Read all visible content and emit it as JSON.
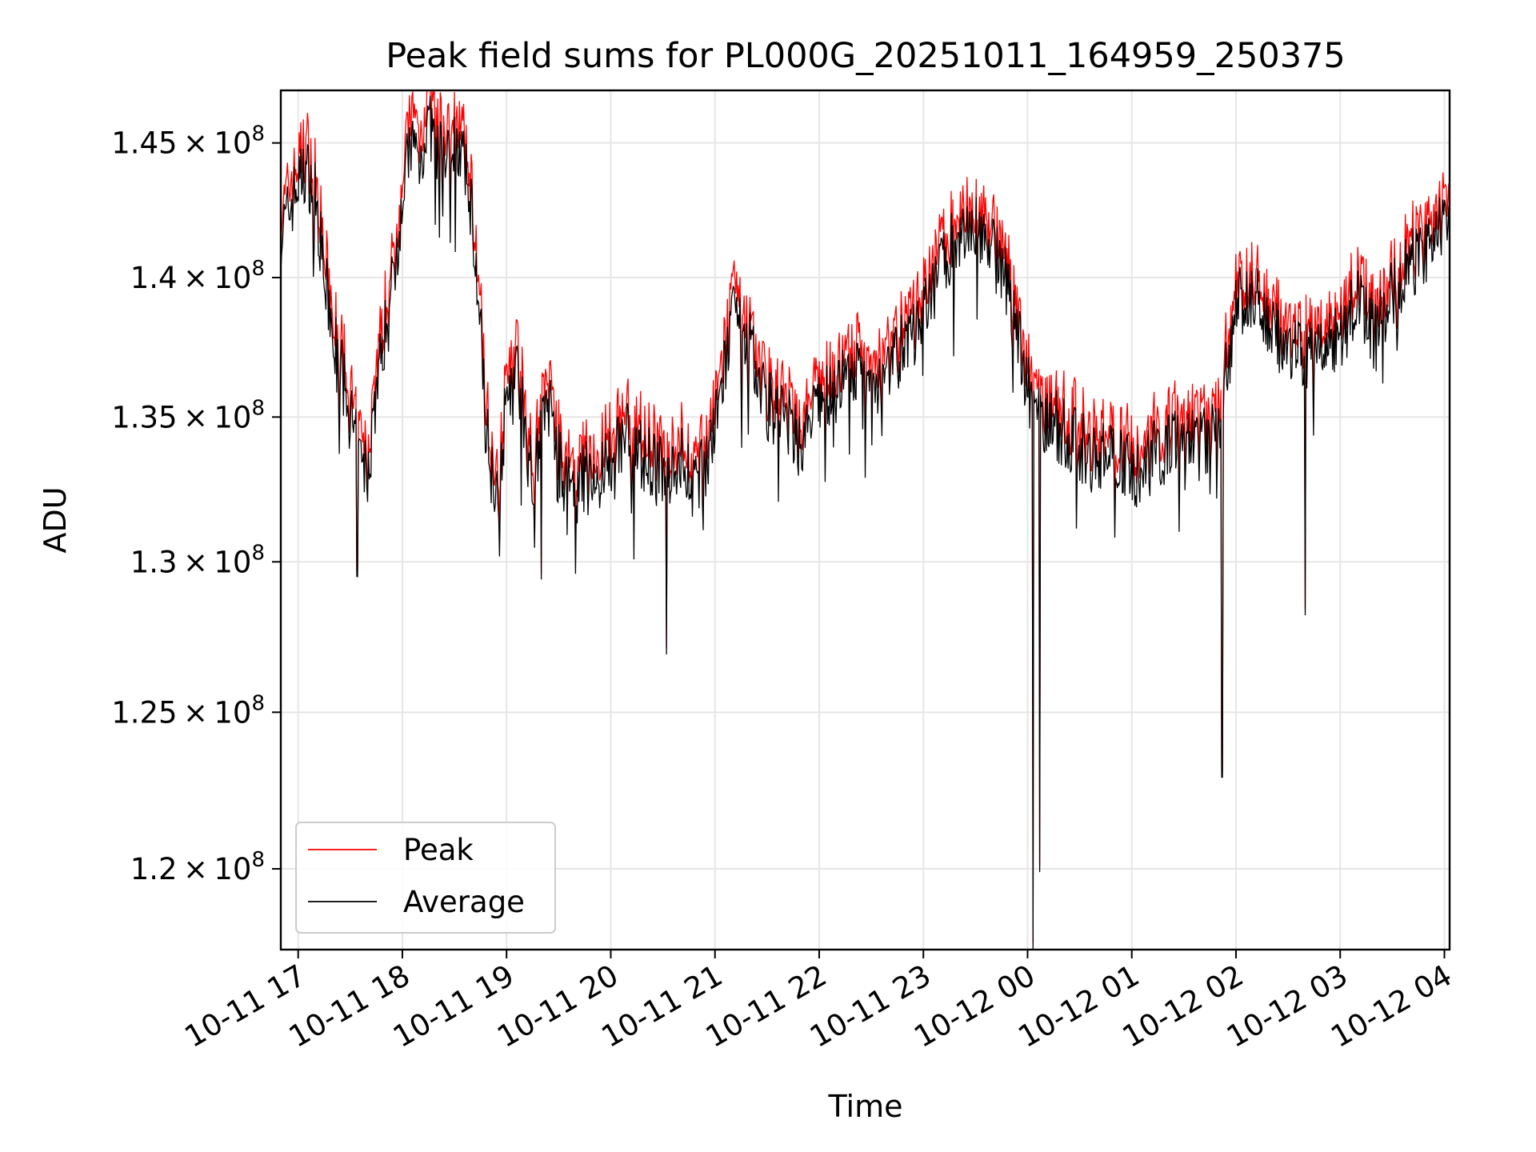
{
  "chart_data": {
    "type": "line",
    "title": "Peak field sums for PL000G_20251011_164959_250375",
    "xlabel": "Time",
    "ylabel": "ADU",
    "ylim": [
      117500000,
      147000000
    ],
    "xlim": [
      "2025-10-11 16:50:00",
      "2025-10-12 04:03:00"
    ],
    "log_scale_y": true,
    "grid": true,
    "legend_position": "lower-left",
    "y_ticks": [
      {
        "value": 120000000,
        "label": "1.2 × 10^8"
      },
      {
        "value": 125000000,
        "label": "1.25 × 10^8"
      },
      {
        "value": 130000000,
        "label": "1.3 × 10^8"
      },
      {
        "value": 135000000,
        "label": "1.35 × 10^8"
      },
      {
        "value": 140000000,
        "label": "1.4 × 10^8"
      },
      {
        "value": 145000000,
        "label": "1.45 × 10^8"
      }
    ],
    "y_tick_display": [
      {
        "mant": "1.2",
        "exp": "8"
      },
      {
        "mant": "1.25",
        "exp": "8"
      },
      {
        "mant": "1.3",
        "exp": "8"
      },
      {
        "mant": "1.35",
        "exp": "8"
      },
      {
        "mant": "1.4",
        "exp": "8"
      },
      {
        "mant": "1.45",
        "exp": "8"
      }
    ],
    "x_ticks": [
      {
        "value": "2025-10-11 17:00",
        "label": "10-11 17"
      },
      {
        "value": "2025-10-11 18:00",
        "label": "10-11 18"
      },
      {
        "value": "2025-10-11 19:00",
        "label": "10-11 19"
      },
      {
        "value": "2025-10-11 20:00",
        "label": "10-11 20"
      },
      {
        "value": "2025-10-11 21:00",
        "label": "10-11 21"
      },
      {
        "value": "2025-10-11 22:00",
        "label": "10-11 22"
      },
      {
        "value": "2025-10-11 23:00",
        "label": "10-11 23"
      },
      {
        "value": "2025-10-12 00:00",
        "label": "10-12 00"
      },
      {
        "value": "2025-10-12 01:00",
        "label": "10-12 01"
      },
      {
        "value": "2025-10-12 02:00",
        "label": "10-12 02"
      },
      {
        "value": "2025-10-12 03:00",
        "label": "10-12 03"
      },
      {
        "value": "2025-10-12 04:00",
        "label": "10-12 04"
      }
    ],
    "series": [
      {
        "name": "Peak",
        "color": "#ff0000",
        "points": [
          [
            "2025-10-11 16:50",
            142000000
          ],
          [
            "2025-10-11 17:00",
            144000000
          ],
          [
            "2025-10-11 17:05",
            144700000
          ],
          [
            "2025-10-11 17:10",
            143500000
          ],
          [
            "2025-10-11 17:15",
            140500000
          ],
          [
            "2025-10-11 17:20",
            138500000
          ],
          [
            "2025-10-11 17:25",
            137000000
          ],
          [
            "2025-10-11 17:30",
            135500000
          ],
          [
            "2025-10-11 17:35",
            134000000
          ],
          [
            "2025-10-11 17:40",
            133500000
          ],
          [
            "2025-10-11 17:45",
            136500000
          ],
          [
            "2025-10-11 17:50",
            138500000
          ],
          [
            "2025-10-11 17:55",
            140500000
          ],
          [
            "2025-10-11 18:00",
            143500000
          ],
          [
            "2025-10-11 18:05",
            146000000
          ],
          [
            "2025-10-11 18:10",
            145000000
          ],
          [
            "2025-10-11 18:15",
            146800000
          ],
          [
            "2025-10-11 18:20",
            145500000
          ],
          [
            "2025-10-11 18:25",
            144800000
          ],
          [
            "2025-10-11 18:30",
            146200000
          ],
          [
            "2025-10-11 18:35",
            145000000
          ],
          [
            "2025-10-11 18:40",
            143000000
          ],
          [
            "2025-10-11 18:45",
            138500000
          ],
          [
            "2025-10-11 18:50",
            134000000
          ],
          [
            "2025-10-11 18:55",
            133000000
          ],
          [
            "2025-10-11 19:00",
            136000000
          ],
          [
            "2025-10-11 19:05",
            137500000
          ],
          [
            "2025-10-11 19:10",
            135500000
          ],
          [
            "2025-10-11 19:15",
            133500000
          ],
          [
            "2025-10-11 19:20",
            135000000
          ],
          [
            "2025-10-11 19:25",
            136000000
          ],
          [
            "2025-10-11 19:30",
            134000000
          ],
          [
            "2025-10-11 19:35",
            133000000
          ],
          [
            "2025-10-11 19:40",
            132500000
          ],
          [
            "2025-10-11 19:45",
            133500000
          ],
          [
            "2025-10-11 19:50",
            133000000
          ],
          [
            "2025-10-11 20:00",
            134000000
          ],
          [
            "2025-10-11 20:10",
            135000000
          ],
          [
            "2025-10-11 20:20",
            134000000
          ],
          [
            "2025-10-11 20:30",
            133500000
          ],
          [
            "2025-10-11 20:40",
            134000000
          ],
          [
            "2025-10-11 20:50",
            133000000
          ],
          [
            "2025-10-11 21:00",
            135000000
          ],
          [
            "2025-10-11 21:10",
            139000000
          ],
          [
            "2025-10-11 21:20",
            138000000
          ],
          [
            "2025-10-11 21:30",
            136000000
          ],
          [
            "2025-10-11 21:40",
            135500000
          ],
          [
            "2025-10-11 21:50",
            134500000
          ],
          [
            "2025-10-11 22:00",
            136000000
          ],
          [
            "2025-10-11 22:10",
            136500000
          ],
          [
            "2025-10-11 22:20",
            137000000
          ],
          [
            "2025-10-11 22:30",
            136500000
          ],
          [
            "2025-10-11 22:40",
            137500000
          ],
          [
            "2025-10-11 22:50",
            138000000
          ],
          [
            "2025-10-11 23:00",
            139000000
          ],
          [
            "2025-10-11 23:10",
            141000000
          ],
          [
            "2025-10-11 23:20",
            142000000
          ],
          [
            "2025-10-11 23:30",
            142500000
          ],
          [
            "2025-10-11 23:40",
            141500000
          ],
          [
            "2025-10-11 23:50",
            140000000
          ],
          [
            "2025-10-12 00:00",
            136500000
          ],
          [
            "2025-10-12 00:10",
            135500000
          ],
          [
            "2025-10-12 00:20",
            135000000
          ],
          [
            "2025-10-12 00:30",
            134500000
          ],
          [
            "2025-10-12 00:40",
            134000000
          ],
          [
            "2025-10-12 00:50",
            134500000
          ],
          [
            "2025-10-12 01:00",
            133500000
          ],
          [
            "2025-10-12 01:10",
            134000000
          ],
          [
            "2025-10-12 01:20",
            134500000
          ],
          [
            "2025-10-12 01:30",
            134800000
          ],
          [
            "2025-10-12 01:40",
            134500000
          ],
          [
            "2025-10-12 01:50",
            135000000
          ],
          [
            "2025-10-12 02:00",
            139500000
          ],
          [
            "2025-10-12 02:10",
            140000000
          ],
          [
            "2025-10-12 02:20",
            138500000
          ],
          [
            "2025-10-12 02:30",
            138000000
          ],
          [
            "2025-10-12 02:40",
            137500000
          ],
          [
            "2025-10-12 02:50",
            138000000
          ],
          [
            "2025-10-12 03:00",
            138500000
          ],
          [
            "2025-10-12 03:10",
            139500000
          ],
          [
            "2025-10-12 03:20",
            138500000
          ],
          [
            "2025-10-12 03:30",
            140000000
          ],
          [
            "2025-10-12 03:40",
            141000000
          ],
          [
            "2025-10-12 03:50",
            141500000
          ],
          [
            "2025-10-12 04:00",
            142500000
          ]
        ]
      },
      {
        "name": "Average",
        "color": "#000000",
        "points": [
          [
            "2025-10-11 16:50",
            141500000
          ],
          [
            "2025-10-11 17:00",
            143500000
          ],
          [
            "2025-10-11 17:05",
            144000000
          ],
          [
            "2025-10-11 17:10",
            143000000
          ],
          [
            "2025-10-11 17:15",
            140000000
          ],
          [
            "2025-10-11 17:20",
            138000000
          ],
          [
            "2025-10-11 17:25",
            136500000
          ],
          [
            "2025-10-11 17:30",
            135000000
          ],
          [
            "2025-10-11 17:35",
            133500000
          ],
          [
            "2025-10-11 17:40",
            133000000
          ],
          [
            "2025-10-11 17:45",
            136000000
          ],
          [
            "2025-10-11 17:50",
            138000000
          ],
          [
            "2025-10-11 17:55",
            140000000
          ],
          [
            "2025-10-11 18:00",
            143000000
          ],
          [
            "2025-10-11 18:05",
            145200000
          ],
          [
            "2025-10-11 18:10",
            144300000
          ],
          [
            "2025-10-11 18:15",
            145800000
          ],
          [
            "2025-10-11 18:20",
            144800000
          ],
          [
            "2025-10-11 18:25",
            144200000
          ],
          [
            "2025-10-11 18:30",
            145300000
          ],
          [
            "2025-10-11 18:35",
            144300000
          ],
          [
            "2025-10-11 18:40",
            142500000
          ],
          [
            "2025-10-11 18:45",
            138000000
          ],
          [
            "2025-10-11 18:50",
            133500000
          ],
          [
            "2025-10-11 18:55",
            132500000
          ],
          [
            "2025-10-11 19:00",
            135500000
          ],
          [
            "2025-10-11 19:05",
            137000000
          ],
          [
            "2025-10-11 19:10",
            135000000
          ],
          [
            "2025-10-11 19:15",
            133000000
          ],
          [
            "2025-10-11 19:20",
            134500000
          ],
          [
            "2025-10-11 19:25",
            135500000
          ],
          [
            "2025-10-11 19:30",
            133500000
          ],
          [
            "2025-10-11 19:35",
            132500000
          ],
          [
            "2025-10-11 19:40",
            132000000
          ],
          [
            "2025-10-11 19:45",
            133000000
          ],
          [
            "2025-10-11 19:50",
            132500000
          ],
          [
            "2025-10-11 20:00",
            133500000
          ],
          [
            "2025-10-11 20:10",
            134500000
          ],
          [
            "2025-10-11 20:20",
            133500000
          ],
          [
            "2025-10-11 20:30",
            133000000
          ],
          [
            "2025-10-11 20:40",
            133500000
          ],
          [
            "2025-10-11 20:50",
            132500000
          ],
          [
            "2025-10-11 21:00",
            134500000
          ],
          [
            "2025-10-11 21:10",
            138500000
          ],
          [
            "2025-10-11 21:20",
            137500000
          ],
          [
            "2025-10-11 21:30",
            135500000
          ],
          [
            "2025-10-11 21:40",
            135000000
          ],
          [
            "2025-10-11 21:50",
            134000000
          ],
          [
            "2025-10-11 22:00",
            135500000
          ],
          [
            "2025-10-11 22:10",
            136000000
          ],
          [
            "2025-10-11 22:20",
            136500000
          ],
          [
            "2025-10-11 22:30",
            136000000
          ],
          [
            "2025-10-11 22:40",
            137000000
          ],
          [
            "2025-10-11 22:50",
            137500000
          ],
          [
            "2025-10-11 23:00",
            138500000
          ],
          [
            "2025-10-11 23:10",
            140500000
          ],
          [
            "2025-10-11 23:20",
            141500000
          ],
          [
            "2025-10-11 23:30",
            142000000
          ],
          [
            "2025-10-11 23:40",
            141000000
          ],
          [
            "2025-10-11 23:50",
            139500000
          ],
          [
            "2025-10-12 00:00",
            136000000
          ],
          [
            "2025-10-12 00:10",
            135000000
          ],
          [
            "2025-10-12 00:20",
            134500000
          ],
          [
            "2025-10-12 00:30",
            134000000
          ],
          [
            "2025-10-12 00:40",
            133500000
          ],
          [
            "2025-10-12 00:50",
            134000000
          ],
          [
            "2025-10-12 01:00",
            133000000
          ],
          [
            "2025-10-12 01:10",
            133500000
          ],
          [
            "2025-10-12 01:20",
            134000000
          ],
          [
            "2025-10-12 01:30",
            134300000
          ],
          [
            "2025-10-12 01:40",
            134000000
          ],
          [
            "2025-10-12 01:50",
            134500000
          ],
          [
            "2025-10-12 02:00",
            139000000
          ],
          [
            "2025-10-12 02:10",
            139500000
          ],
          [
            "2025-10-12 02:20",
            138000000
          ],
          [
            "2025-10-12 02:30",
            137500000
          ],
          [
            "2025-10-12 02:40",
            137000000
          ],
          [
            "2025-10-12 02:50",
            137500000
          ],
          [
            "2025-10-12 03:00",
            138000000
          ],
          [
            "2025-10-12 03:10",
            139000000
          ],
          [
            "2025-10-12 03:20",
            138000000
          ],
          [
            "2025-10-12 03:30",
            139500000
          ],
          [
            "2025-10-12 03:40",
            140500000
          ],
          [
            "2025-10-12 03:50",
            141000000
          ],
          [
            "2025-10-12 04:00",
            142000000
          ]
        ]
      }
    ],
    "notable_dips": [
      {
        "time": "2025-10-11 17:34",
        "value": 129500000
      },
      {
        "time": "2025-10-11 19:20",
        "value": 129400000
      },
      {
        "time": "2025-10-11 20:32",
        "value": 126900000
      },
      {
        "time": "2025-10-12 00:03",
        "value": 117500000
      },
      {
        "time": "2025-10-12 00:07",
        "value": 119900000
      },
      {
        "time": "2025-10-12 01:52",
        "value": 122900000
      },
      {
        "time": "2025-10-12 02:40",
        "value": 128200000
      }
    ]
  }
}
